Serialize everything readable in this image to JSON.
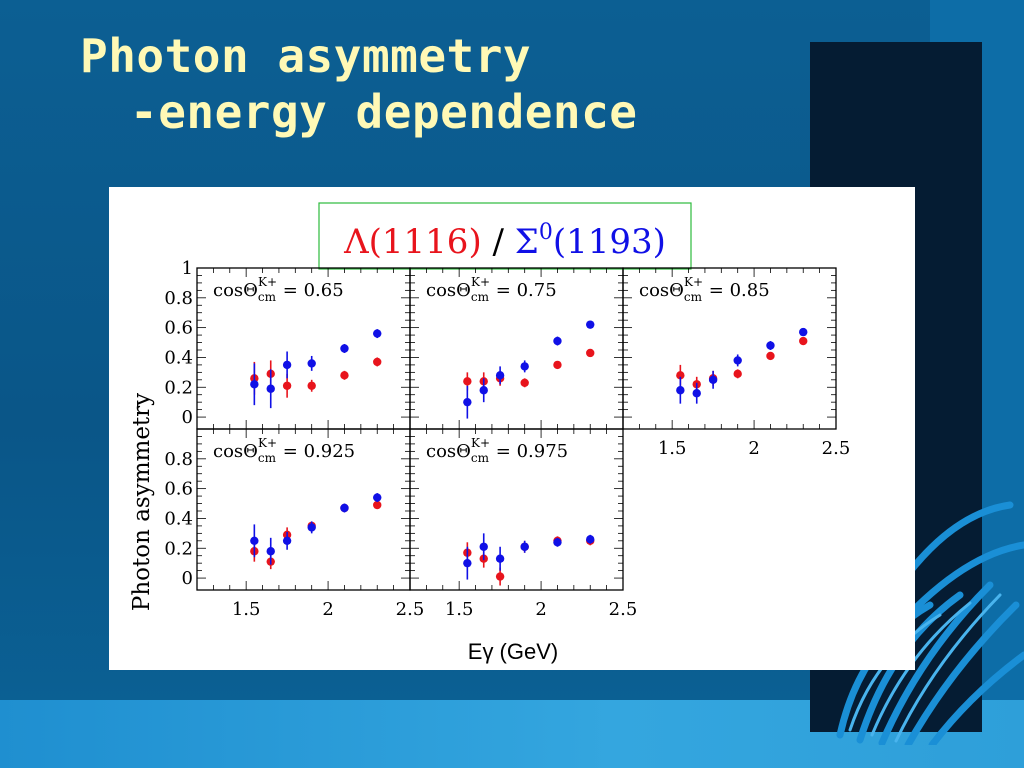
{
  "slide": {
    "title_line1": "Photon asymmetry",
    "title_line2": "-energy dependence"
  },
  "chart_data": {
    "type": "scatter",
    "header": {
      "lambda_label": "Λ(1116)",
      "separator": " / ",
      "sigma_label": "Σ",
      "sigma_superscript": "0",
      "sigma_mass": "(1193)"
    },
    "ylabel": "Photon asymmetry",
    "xlabel": "Eγ (GeV)",
    "xlim": [
      1.2,
      2.5
    ],
    "ylim": [
      -0.08,
      1.0
    ],
    "xticks": [
      "1.5",
      "2",
      "2.5"
    ],
    "yticks_top": [
      "1",
      "0.8",
      "0.6",
      "0.4",
      "0.2",
      "0"
    ],
    "yticks_bottom": [
      "0.8",
      "0.6",
      "0.4",
      "0.2",
      "0"
    ],
    "colors": {
      "lambda": "#e8141c",
      "sigma": "#1010e6"
    },
    "panels": [
      {
        "label_prefix": "cosΘ",
        "label_sub": "cm",
        "label_sup": "K+",
        "label_value": "= 0.65",
        "series": [
          {
            "key": "lambda",
            "points": [
              [
                1.55,
                0.26,
                0.11
              ],
              [
                1.65,
                0.29,
                0.09
              ],
              [
                1.75,
                0.21,
                0.08
              ],
              [
                1.9,
                0.21,
                0.04
              ],
              [
                2.1,
                0.28,
                0.03
              ],
              [
                2.3,
                0.37,
                0.03
              ]
            ]
          },
          {
            "key": "sigma",
            "points": [
              [
                1.55,
                0.22,
                0.14
              ],
              [
                1.65,
                0.19,
                0.13
              ],
              [
                1.75,
                0.35,
                0.09
              ],
              [
                1.9,
                0.36,
                0.05
              ],
              [
                2.1,
                0.46,
                0.03
              ],
              [
                2.3,
                0.56,
                0.03
              ]
            ]
          }
        ]
      },
      {
        "label_prefix": "cosΘ",
        "label_sub": "cm",
        "label_sup": "K+",
        "label_value": "= 0.75",
        "series": [
          {
            "key": "lambda",
            "points": [
              [
                1.55,
                0.24,
                0.06
              ],
              [
                1.65,
                0.24,
                0.06
              ],
              [
                1.75,
                0.26,
                0.05
              ],
              [
                1.9,
                0.23,
                0.03
              ],
              [
                2.1,
                0.35,
                0.02
              ],
              [
                2.3,
                0.43,
                0.02
              ]
            ]
          },
          {
            "key": "sigma",
            "points": [
              [
                1.55,
                0.1,
                0.11
              ],
              [
                1.65,
                0.18,
                0.08
              ],
              [
                1.75,
                0.28,
                0.06
              ],
              [
                1.9,
                0.34,
                0.04
              ],
              [
                2.1,
                0.51,
                0.03
              ],
              [
                2.3,
                0.62,
                0.02
              ]
            ]
          }
        ]
      },
      {
        "label_prefix": "cosΘ",
        "label_sub": "cm",
        "label_sup": "K+",
        "label_value": "= 0.85",
        "series": [
          {
            "key": "lambda",
            "points": [
              [
                1.55,
                0.28,
                0.07
              ],
              [
                1.65,
                0.22,
                0.05
              ],
              [
                1.75,
                0.26,
                0.05
              ],
              [
                1.9,
                0.29,
                0.03
              ],
              [
                2.1,
                0.41,
                0.02
              ],
              [
                2.3,
                0.51,
                0.02
              ]
            ]
          },
          {
            "key": "sigma",
            "points": [
              [
                1.55,
                0.18,
                0.09
              ],
              [
                1.65,
                0.16,
                0.07
              ],
              [
                1.75,
                0.25,
                0.06
              ],
              [
                1.9,
                0.38,
                0.04
              ],
              [
                2.1,
                0.48,
                0.03
              ],
              [
                2.3,
                0.57,
                0.02
              ]
            ]
          }
        ]
      },
      {
        "label_prefix": "cosΘ",
        "label_sub": "cm",
        "label_sup": "K+",
        "label_value": "= 0.925",
        "series": [
          {
            "key": "lambda",
            "points": [
              [
                1.55,
                0.18,
                0.07
              ],
              [
                1.65,
                0.11,
                0.05
              ],
              [
                1.75,
                0.29,
                0.05
              ],
              [
                1.9,
                0.35,
                0.03
              ],
              [
                2.1,
                0.47,
                0.02
              ],
              [
                2.3,
                0.49,
                0.02
              ]
            ]
          },
          {
            "key": "sigma",
            "points": [
              [
                1.55,
                0.25,
                0.11
              ],
              [
                1.65,
                0.18,
                0.09
              ],
              [
                1.75,
                0.25,
                0.06
              ],
              [
                1.9,
                0.34,
                0.04
              ],
              [
                2.1,
                0.47,
                0.03
              ],
              [
                2.3,
                0.54,
                0.03
              ]
            ]
          }
        ]
      },
      {
        "label_prefix": "cosΘ",
        "label_sub": "cm",
        "label_sup": "K+",
        "label_value": "= 0.975",
        "series": [
          {
            "key": "lambda",
            "points": [
              [
                1.55,
                0.17,
                0.07
              ],
              [
                1.65,
                0.13,
                0.06
              ],
              [
                1.75,
                0.01,
                0.06
              ],
              [
                1.9,
                0.21,
                0.04
              ],
              [
                2.1,
                0.25,
                0.03
              ],
              [
                2.3,
                0.25,
                0.03
              ]
            ]
          },
          {
            "key": "sigma",
            "points": [
              [
                1.55,
                0.1,
                0.11
              ],
              [
                1.65,
                0.21,
                0.09
              ],
              [
                1.75,
                0.13,
                0.08
              ],
              [
                1.9,
                0.21,
                0.04
              ],
              [
                2.1,
                0.24,
                0.03
              ],
              [
                2.3,
                0.26,
                0.03
              ]
            ]
          }
        ]
      }
    ]
  }
}
